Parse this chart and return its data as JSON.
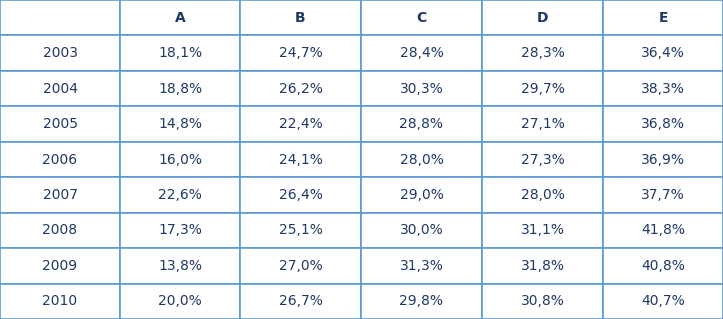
{
  "columns": [
    "",
    "A",
    "B",
    "C",
    "D",
    "E"
  ],
  "rows": [
    [
      "2003",
      "18,1%",
      "24,7%",
      "28,4%",
      "28,3%",
      "36,4%"
    ],
    [
      "2004",
      "18,8%",
      "26,2%",
      "30,3%",
      "29,7%",
      "38,3%"
    ],
    [
      "2005",
      "14,8%",
      "22,4%",
      "28,8%",
      "27,1%",
      "36,8%"
    ],
    [
      "2006",
      "16,0%",
      "24,1%",
      "28,0%",
      "27,3%",
      "36,9%"
    ],
    [
      "2007",
      "22,6%",
      "26,4%",
      "29,0%",
      "28,0%",
      "37,7%"
    ],
    [
      "2008",
      "17,3%",
      "25,1%",
      "30,0%",
      "31,1%",
      "41,8%"
    ],
    [
      "2009",
      "13,8%",
      "27,0%",
      "31,3%",
      "31,8%",
      "40,8%"
    ],
    [
      "2010",
      "20,0%",
      "26,7%",
      "29,8%",
      "30,8%",
      "40,7%"
    ]
  ],
  "text_color": "#1F3864",
  "header_text_color": "#1F3864",
  "grid_color": "#5B9BD5",
  "background_color": "#FFFFFF",
  "font_size": 10,
  "header_font_size": 10,
  "fig_width": 7.23,
  "fig_height": 3.19,
  "dpi": 100
}
